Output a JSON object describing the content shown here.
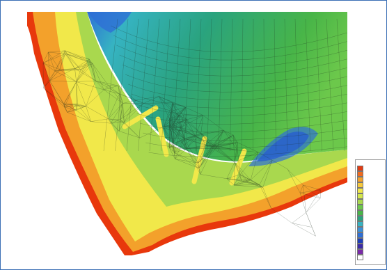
{
  "map": {
    "corner_label": "",
    "x_axis_unit": "",
    "legend_title": "",
    "colors": {
      "land": "#ffffff",
      "shore_red": "#e8380c",
      "orange": "#f3a12b",
      "yellow": "#f1e84a",
      "light_green": "#a9d84e",
      "green": "#48b548",
      "teal": "#2aa37e",
      "cyan": "#36b3c2",
      "blue": "#2e6fd6",
      "deep_blue": "#1e3fb8",
      "mesh": "#1b2b1b",
      "frame": "#3a6fb5"
    },
    "legend_items": [
      {
        "color": "#e23b12",
        "label": ""
      },
      {
        "color": "#f06a1e",
        "label": ""
      },
      {
        "color": "#f3a12b",
        "label": ""
      },
      {
        "color": "#f7c83a",
        "label": ""
      },
      {
        "color": "#f1e84a",
        "label": ""
      },
      {
        "color": "#d2e64b",
        "label": ""
      },
      {
        "color": "#a9d84e",
        "label": ""
      },
      {
        "color": "#6cc84b",
        "label": ""
      },
      {
        "color": "#48b548",
        "label": ""
      },
      {
        "color": "#2aa37e",
        "label": ""
      },
      {
        "color": "#36b3c2",
        "label": ""
      },
      {
        "color": "#3b8fd8",
        "label": ""
      },
      {
        "color": "#2e6fd6",
        "label": ""
      },
      {
        "color": "#1e3fb8",
        "label": ""
      },
      {
        "color": "#3b2aa8",
        "label": ""
      },
      {
        "color": "#7a2aa8",
        "label": ""
      },
      {
        "color": "#ffffff",
        "label": ""
      }
    ],
    "y_ticks": [
      "",
      "",
      "",
      "",
      "",
      "",
      "",
      "",
      "",
      "",
      "",
      "",
      "",
      "",
      "",
      "",
      "",
      "",
      ""
    ],
    "x_ticks": [
      "",
      "",
      "",
      "",
      "",
      "",
      "",
      ""
    ]
  }
}
